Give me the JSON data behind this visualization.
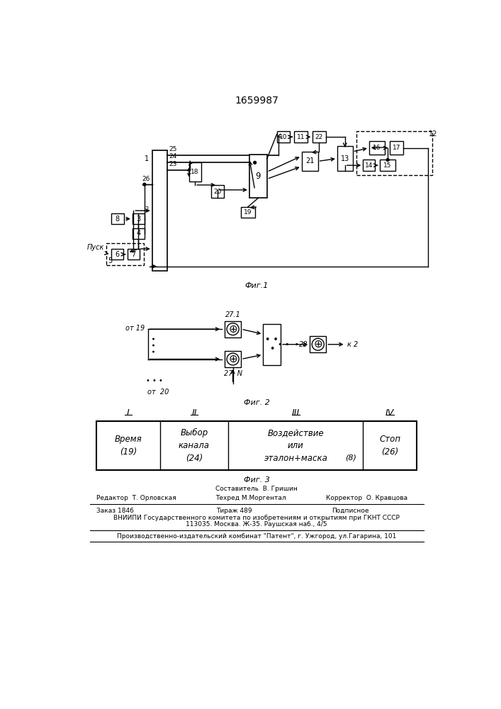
{
  "title": "1659987",
  "fig1_label": "Фиг.1",
  "fig2_label": "Фиг. 2",
  "fig3_label": "Фиг. 3",
  "line_color": "#000000",
  "table_col_headers": [
    "I",
    "II",
    "III",
    "IV"
  ],
  "cell_texts": [
    "Время\n(19)",
    "Выбор\nканала\n(24)",
    "Воздействие\nили\nэталон+маска",
    "Стоп\n(26)"
  ],
  "table_note": "(8)",
  "footer_line1": "Составитель  В. Гришин",
  "footer_line2_left": "Редактор  Т. Орловская",
  "footer_line2_mid": "Техред М.Моргентал",
  "footer_line2_right": "Корректор  О. Кравцова",
  "footer_line3a": "Заказ 1846",
  "footer_line3b": "Тираж 489",
  "footer_line3c": "Подписное",
  "footer_line4": "ВНИИПИ Государственного комитета по изобретениям и открытиям при ГКНТ СССР",
  "footer_line5": "113035. Москва. Ж-35. Раушская наб., 4/5",
  "footer_line6": "Производственно-издательский комбинат \"Патент\", г. Ужгород, ул.Гагарина, 101"
}
